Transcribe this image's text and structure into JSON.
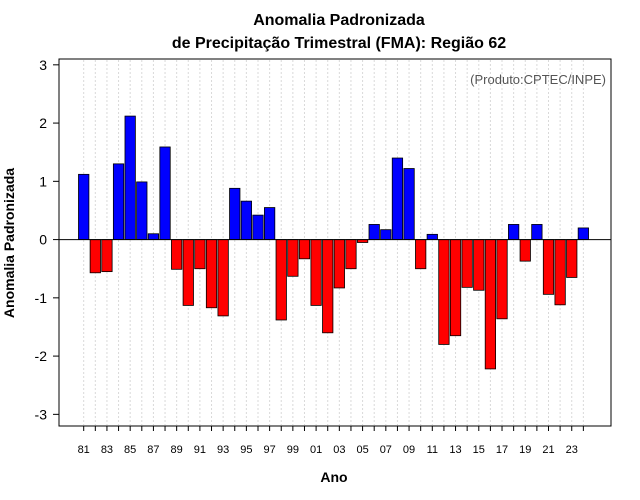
{
  "chart_data": {
    "type": "bar",
    "title_line1": "Anomalia Padronizada",
    "title_line2": "de Precipitação Trimestral (FMA): Região 62",
    "xlabel": "Ano",
    "ylabel": "Anomalia Padronizada",
    "credit": "(Produto:CPTEC/INPE)",
    "ylim": [
      -3.2,
      3.1
    ],
    "yticks": [
      -3,
      -2,
      -1,
      0,
      1,
      2,
      3
    ],
    "ytick_labels": [
      "-3",
      "-2",
      "-1",
      "0",
      "1",
      "2",
      "3"
    ],
    "categories": [
      "81",
      "82",
      "83",
      "84",
      "85",
      "86",
      "87",
      "88",
      "89",
      "90",
      "91",
      "92",
      "93",
      "94",
      "95",
      "96",
      "97",
      "98",
      "99",
      "00",
      "01",
      "02",
      "03",
      "04",
      "05",
      "06",
      "07",
      "08",
      "09",
      "10",
      "11",
      "12",
      "13",
      "14",
      "15",
      "16",
      "17",
      "18",
      "19",
      "20",
      "21",
      "22",
      "23",
      "24"
    ],
    "xtick_labels": [
      "81",
      "83",
      "85",
      "87",
      "89",
      "91",
      "93",
      "95",
      "97",
      "99",
      "01",
      "03",
      "05",
      "07",
      "09",
      "11",
      "13",
      "15",
      "17",
      "19",
      "21",
      "23"
    ],
    "values": [
      1.12,
      -0.57,
      -0.55,
      1.3,
      2.12,
      0.99,
      0.1,
      1.59,
      -0.51,
      -1.13,
      -0.5,
      -1.17,
      -1.31,
      0.88,
      0.66,
      0.42,
      0.55,
      -1.38,
      -0.63,
      -0.33,
      -1.13,
      -1.6,
      -0.83,
      -0.5,
      -0.05,
      0.26,
      0.17,
      1.4,
      1.22,
      -0.5,
      0.09,
      -1.8,
      -1.65,
      -0.82,
      -0.87,
      -2.22,
      -1.36,
      0.26,
      -0.37,
      0.26,
      -0.94,
      -1.12,
      -0.65,
      0.2
    ],
    "colors": {
      "positive": "#0000ff",
      "negative": "#ff0000",
      "grid": "#d9d9d9",
      "axis": "#000000"
    }
  }
}
